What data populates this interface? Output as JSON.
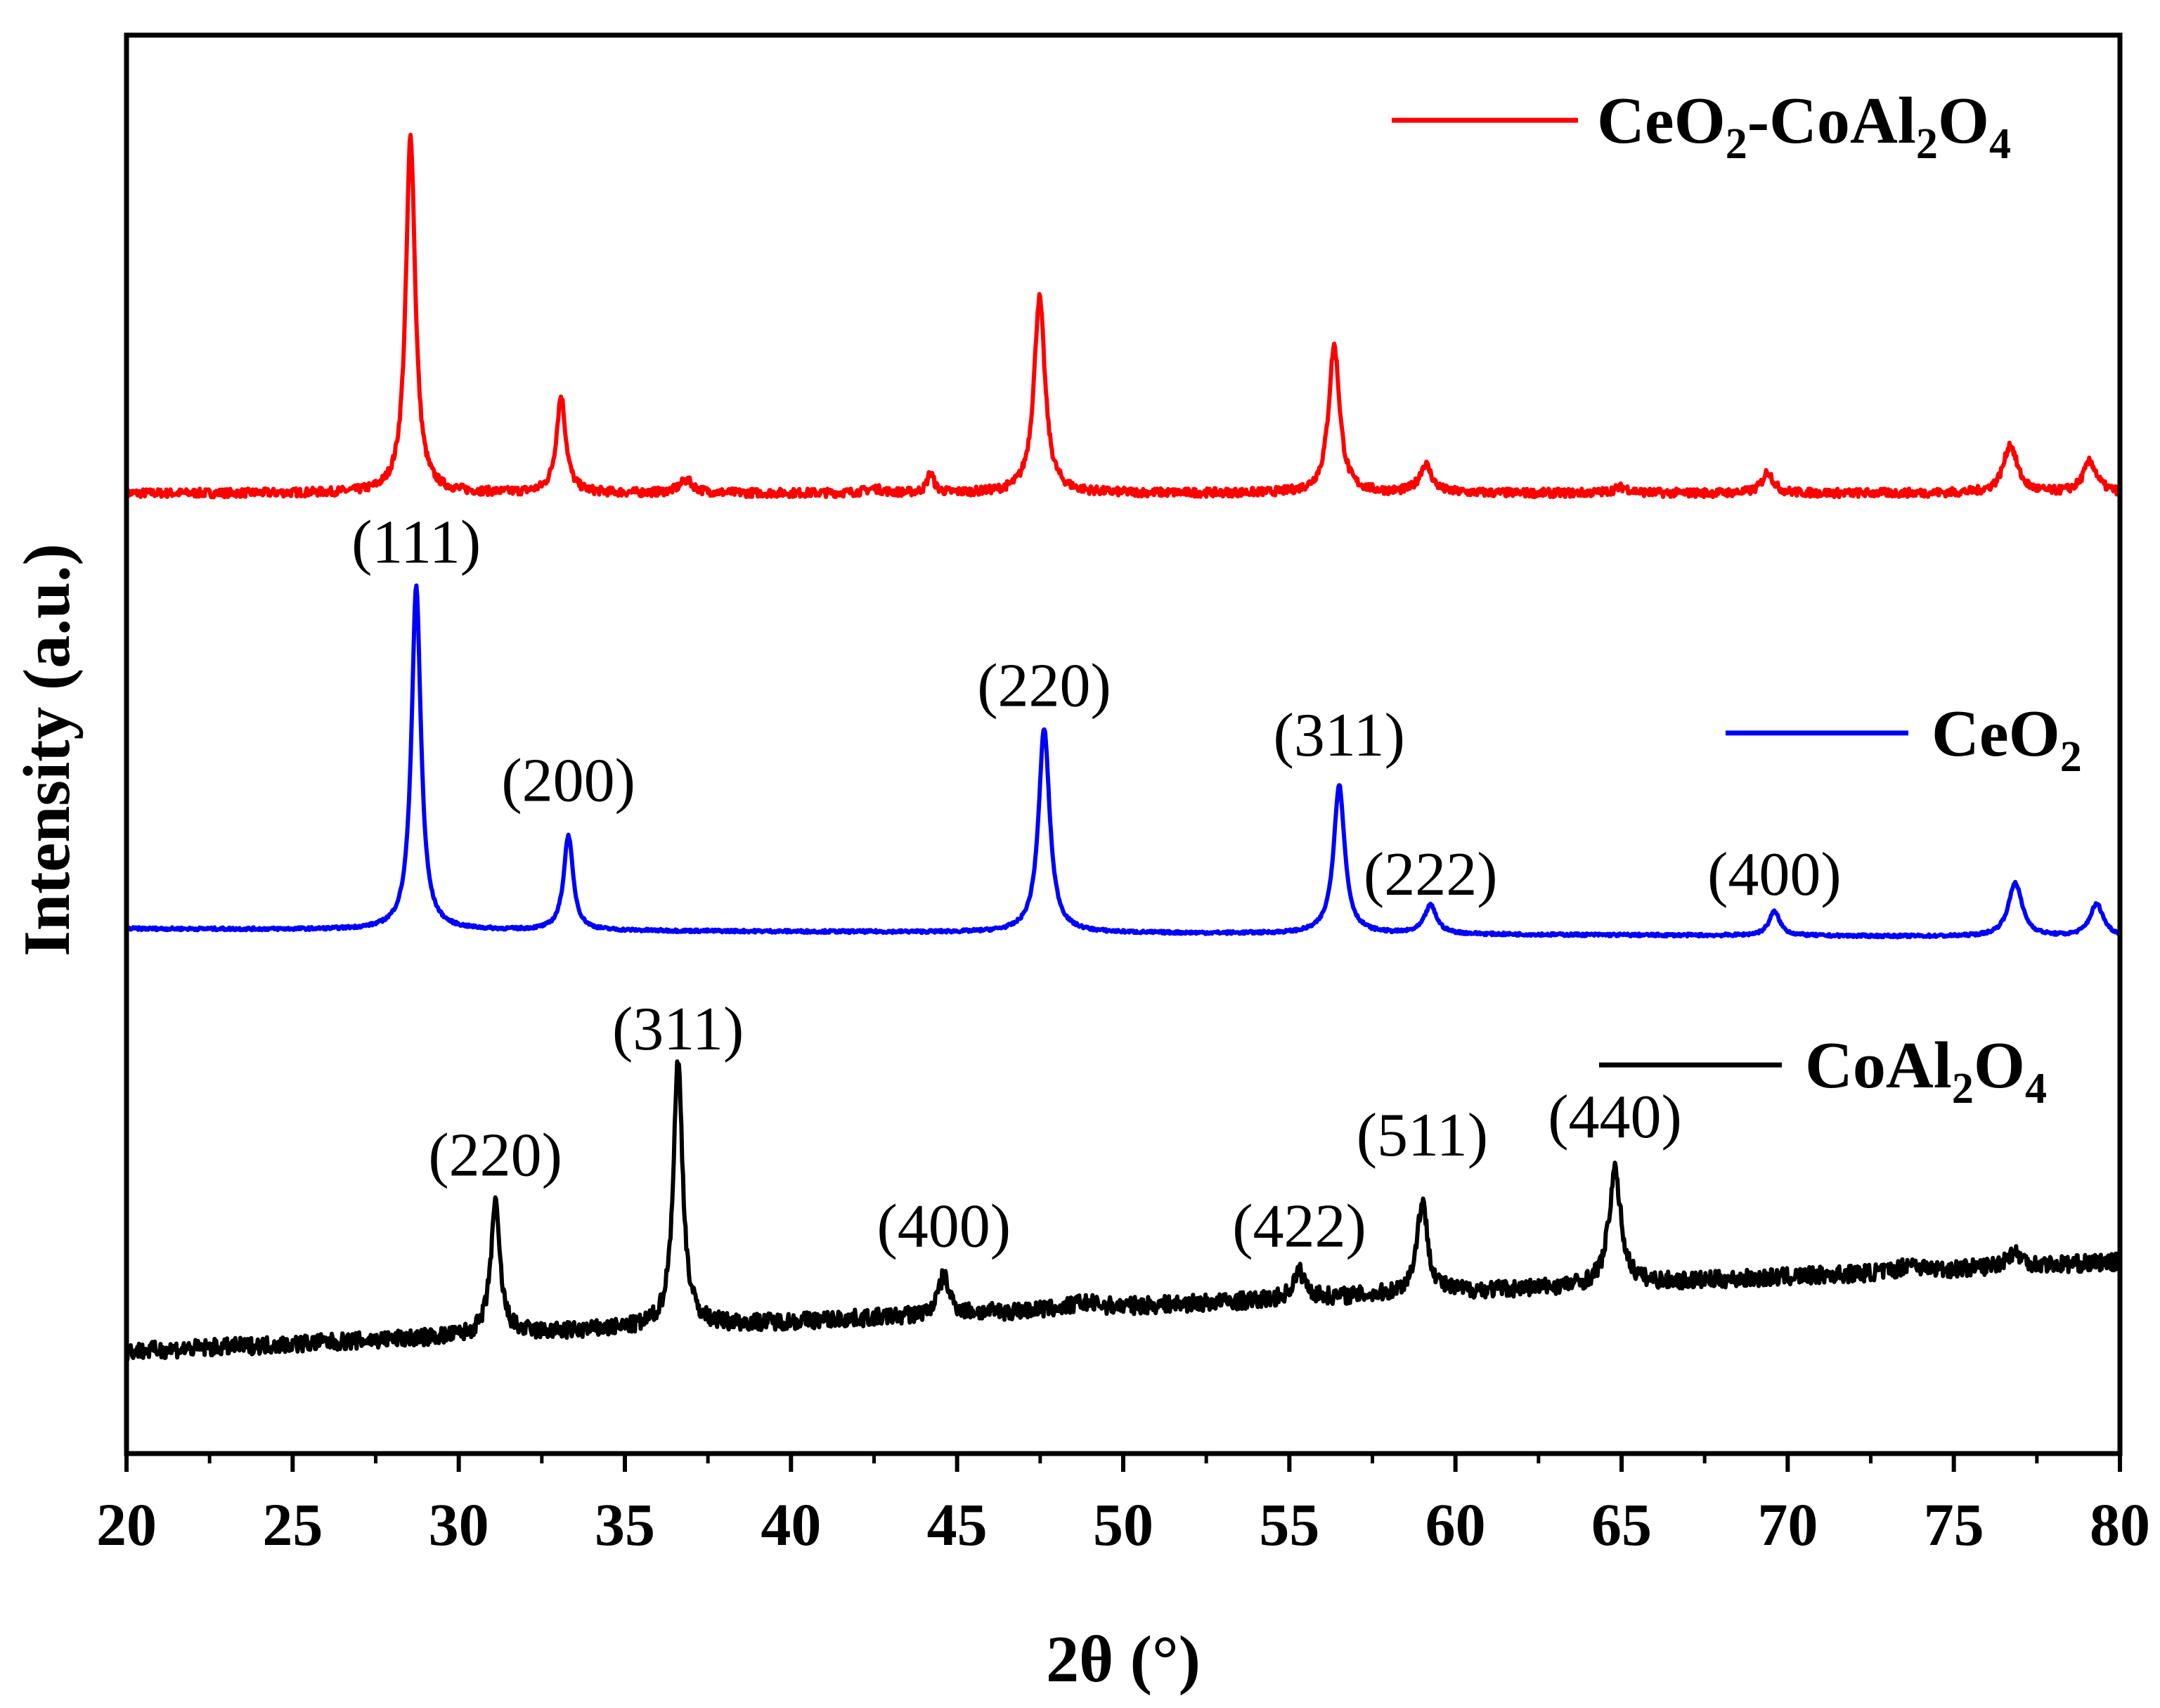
{
  "chart_data": {
    "type": "line",
    "title": "",
    "xlabel": "2θ (°)",
    "ylabel": "Intensity (a.u.)",
    "xlim": [
      20,
      80
    ],
    "ylim": [
      0,
      1
    ],
    "x_ticks": [
      "20",
      "25",
      "30",
      "35",
      "40",
      "45",
      "50",
      "55",
      "60",
      "65",
      "70",
      "75",
      "80"
    ],
    "y_ticks_visible": false,
    "grid": false,
    "legend": "inline labels at right of each trace",
    "colors": {
      "CeO2-CoAl2O4": "#ff0000",
      "CeO2": "#0000ff",
      "CoAl2O4": "#000000",
      "axes": "#000000"
    },
    "series": [
      {
        "name": "CeO2-CoAl2O4",
        "label_main": [
          "CeO",
          "2",
          "-CoAl",
          "2",
          "O",
          "4"
        ],
        "color": "#ff0000",
        "baseline": 0.677,
        "slope": 0.0,
        "noise": 0.003,
        "peaks": [
          {
            "x": 28.55,
            "h": 0.252,
            "w": 0.17
          },
          {
            "x": 33.08,
            "h": 0.068,
            "w": 0.17
          },
          {
            "x": 36.85,
            "h": 0.009,
            "w": 0.25
          },
          {
            "x": 42.5,
            "h": 0.003,
            "w": 0.3
          },
          {
            "x": 44.2,
            "h": 0.014,
            "w": 0.12
          },
          {
            "x": 47.48,
            "h": 0.138,
            "w": 0.2
          },
          {
            "x": 56.35,
            "h": 0.104,
            "w": 0.2
          },
          {
            "x": 59.1,
            "h": 0.02,
            "w": 0.22
          },
          {
            "x": 65.0,
            "h": 0.004,
            "w": 0.3
          },
          {
            "x": 69.4,
            "h": 0.015,
            "w": 0.2
          },
          {
            "x": 76.7,
            "h": 0.034,
            "w": 0.25
          },
          {
            "x": 79.1,
            "h": 0.022,
            "w": 0.25
          }
        ]
      },
      {
        "name": "CeO2",
        "label_main": [
          "CeO",
          "2"
        ],
        "color": "#0000ff",
        "baseline": 0.37,
        "slope": -0.0001,
        "noise": 0.001,
        "peaks": [
          {
            "x": 28.72,
            "h": 0.242,
            "w": 0.17
          },
          {
            "x": 33.3,
            "h": 0.067,
            "w": 0.17
          },
          {
            "x": 47.62,
            "h": 0.144,
            "w": 0.2
          },
          {
            "x": 56.5,
            "h": 0.105,
            "w": 0.2
          },
          {
            "x": 59.25,
            "h": 0.02,
            "w": 0.22
          },
          {
            "x": 69.6,
            "h": 0.017,
            "w": 0.2
          },
          {
            "x": 76.85,
            "h": 0.038,
            "w": 0.25
          },
          {
            "x": 79.3,
            "h": 0.023,
            "w": 0.25
          }
        ]
      },
      {
        "name": "CoAl2O4",
        "label_main": [
          "CoAl",
          "2",
          "O",
          "4"
        ],
        "color": "#000000",
        "baseline": 0.072,
        "slope": 0.00105,
        "noise": 0.006,
        "peaks": [
          {
            "x": 31.1,
            "h": 0.092,
            "w": 0.17
          },
          {
            "x": 36.6,
            "h": 0.187,
            "w": 0.17
          },
          {
            "x": 44.6,
            "h": 0.027,
            "w": 0.2
          },
          {
            "x": 48.8,
            "h": 0.004,
            "w": 0.5
          },
          {
            "x": 55.3,
            "h": 0.019,
            "w": 0.22
          },
          {
            "x": 59.0,
            "h": 0.064,
            "w": 0.2
          },
          {
            "x": 64.8,
            "h": 0.08,
            "w": 0.22
          },
          {
            "x": 73.7,
            "h": 0.006,
            "w": 0.3
          },
          {
            "x": 76.8,
            "h": 0.01,
            "w": 0.3
          }
        ]
      }
    ],
    "annotations": [
      {
        "text": "(111)",
        "x": 28.72,
        "y": 0.628,
        "color": "#000000"
      },
      {
        "text": "(200)",
        "x": 33.3,
        "y": 0.46,
        "color": "#000000"
      },
      {
        "text": "(220)",
        "x": 47.62,
        "y": 0.527,
        "color": "#000000"
      },
      {
        "text": "(311)",
        "x": 56.5,
        "y": 0.492,
        "color": "#000000"
      },
      {
        "text": "(222)",
        "x": 59.25,
        "y": 0.394,
        "color": "#000000"
      },
      {
        "text": "(400)",
        "x": 69.6,
        "y": 0.394,
        "color": "#000000"
      },
      {
        "text": "(311)",
        "x": 36.6,
        "y": 0.285,
        "color": "#000000"
      },
      {
        "text": "(220)",
        "x": 31.1,
        "y": 0.196,
        "color": "#000000"
      },
      {
        "text": "(400)",
        "x": 44.6,
        "y": 0.146,
        "color": "#000000"
      },
      {
        "text": "(422)",
        "x": 55.3,
        "y": 0.146,
        "color": "#000000"
      },
      {
        "text": "(511)",
        "x": 59.0,
        "y": 0.21,
        "color": "#000000"
      },
      {
        "text": "(440)",
        "x": 64.8,
        "y": 0.223,
        "color": "#000000"
      }
    ]
  }
}
